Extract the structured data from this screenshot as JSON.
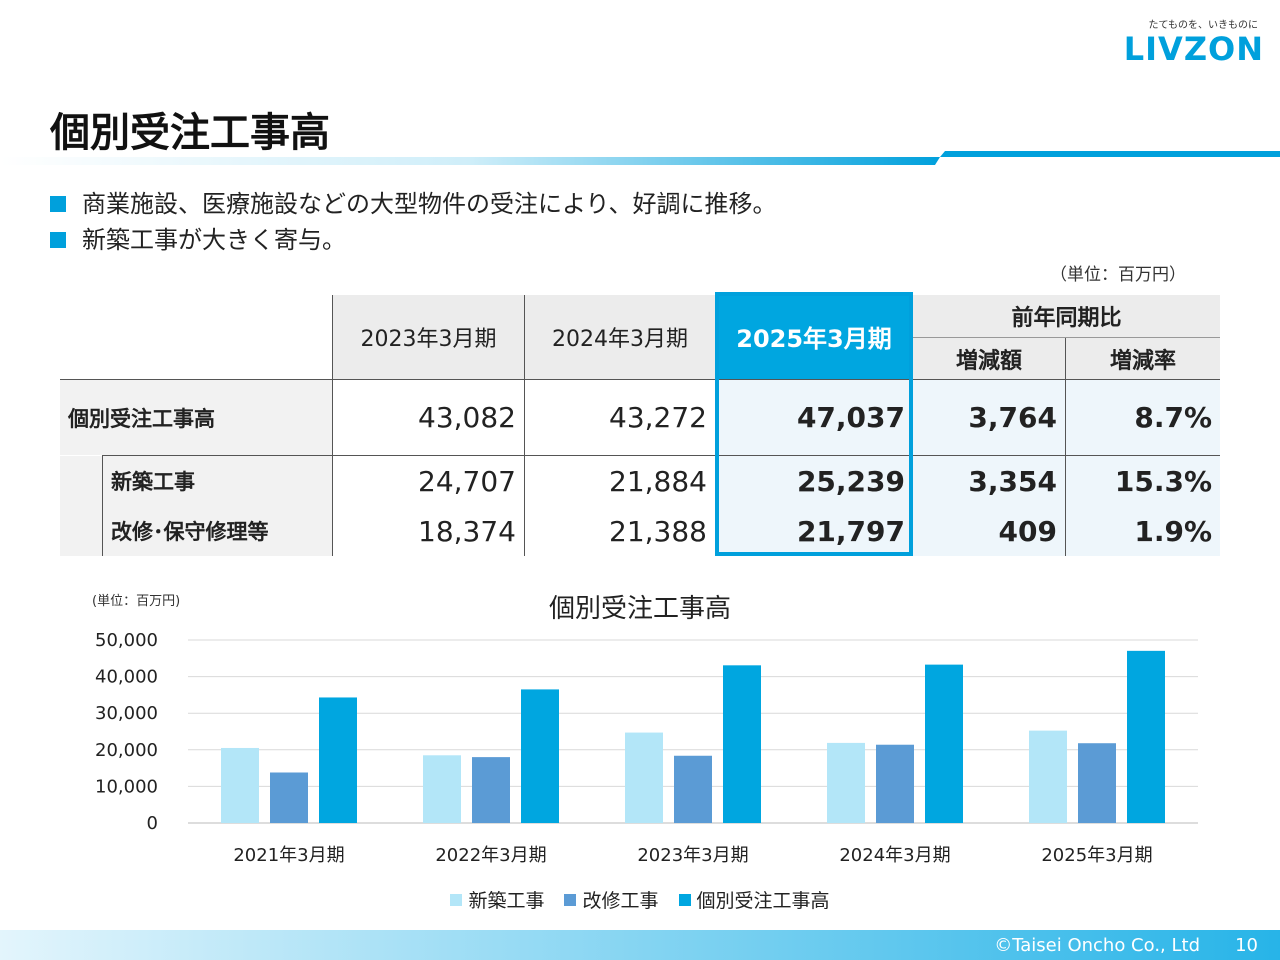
{
  "brand": {
    "tagline": "たてものを、いきものに",
    "logo": "LIVZON",
    "color": "#00a0dc"
  },
  "title": "個別受注工事高",
  "bullets": [
    "商業施設、医療施設などの大型物件の受注により、好調に推移。",
    "新築工事が大きく寄与。"
  ],
  "table": {
    "unit": "（単位：百万円）",
    "headers": {
      "periods": [
        "2023年3月期",
        "2024年3月期",
        "2025年3月期"
      ],
      "yoy": "前年同期比",
      "change_amount": "増減額",
      "change_rate": "増減率"
    },
    "rows": [
      {
        "label": "個別受注工事高",
        "values": [
          "43,082",
          "43,272",
          "47,037"
        ],
        "change": "3,764",
        "rate": "8.7%"
      },
      {
        "label": "新築工事",
        "values": [
          "24,707",
          "21,884",
          "25,239"
        ],
        "change": "3,354",
        "rate": "15.3%"
      },
      {
        "label": "改修･保守修理等",
        "values": [
          "18,374",
          "21,388",
          "21,797"
        ],
        "change": "409",
        "rate": "1.9%"
      }
    ]
  },
  "chart_data": {
    "type": "bar",
    "title": "個別受注工事高",
    "unit_label": "(単位：百万円)",
    "categories": [
      "2021年3月期",
      "2022年3月期",
      "2023年3月期",
      "2024年3月期",
      "2025年3月期"
    ],
    "series": [
      {
        "name": "新築工事",
        "color": "#b3e6f8",
        "values": [
          20500,
          18500,
          24707,
          21884,
          25239
        ]
      },
      {
        "name": "改修工事",
        "color": "#5b9bd5",
        "values": [
          13800,
          18000,
          18374,
          21388,
          21797
        ]
      },
      {
        "name": "個別受注工事高",
        "color": "#00a6e0",
        "values": [
          34300,
          36500,
          43082,
          43272,
          47037
        ]
      }
    ],
    "ylim": [
      0,
      50000
    ],
    "yticks": [
      0,
      10000,
      20000,
      30000,
      40000,
      50000
    ],
    "ytick_labels": [
      "0",
      "10,000",
      "20,000",
      "30,000",
      "40,000",
      "50,000"
    ],
    "grid": true,
    "legend": "bottom"
  },
  "footer": {
    "copyright": "©Taisei Oncho Co., Ltd",
    "page": "10"
  }
}
